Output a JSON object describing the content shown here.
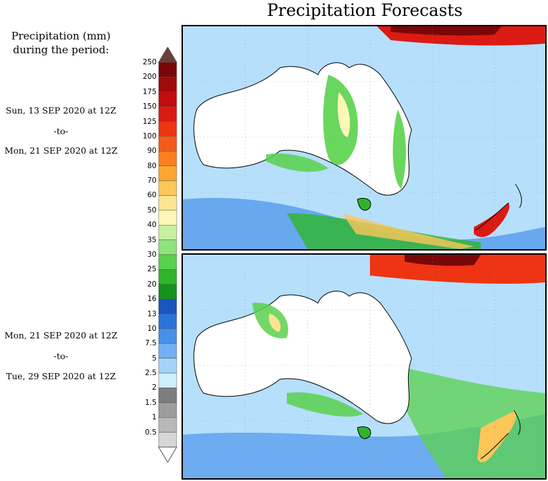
{
  "title": "Precipitation Forecasts",
  "legend": {
    "heading_line1": "Precipitation (mm)",
    "heading_line2": "during the period:",
    "labels": [
      "250",
      "200",
      "175",
      "150",
      "125",
      "100",
      "90",
      "80",
      "70",
      "60",
      "50",
      "40",
      "35",
      "30",
      "25",
      "20",
      "16",
      "13",
      "10",
      "7.5",
      "5",
      "2.5",
      "2",
      "1.5",
      "1",
      "0.5"
    ],
    "colors": [
      "#7a0707",
      "#a10a0a",
      "#c40c0c",
      "#dc1a14",
      "#ee3412",
      "#f55b18",
      "#fa801e",
      "#fca631",
      "#fdc659",
      "#fde590",
      "#fef7b8",
      "#c9f0a0",
      "#8fe47c",
      "#59d14c",
      "#2fb52c",
      "#13931c",
      "#1a55be",
      "#2a73d9",
      "#4690ea",
      "#72b0f4",
      "#a4d3fa",
      "#cdeefc",
      "#7d7d7d",
      "#9c9c9c",
      "#b9b9b9",
      "#d6d6d6"
    ],
    "over_color": "#6a4036",
    "under_color": "#ffffff"
  },
  "periods": [
    {
      "start": "Sun, 13 SEP 2020 at 12Z",
      "to": "-to-",
      "end": "Mon, 21 SEP 2020 at 12Z"
    },
    {
      "start": "Mon, 21 SEP 2020 at 12Z",
      "to": "-to-",
      "end": "Tue, 29 SEP 2020 at 12Z"
    }
  ],
  "map": {
    "land_dry_color": "#ffffff",
    "background_color": "#cdeefc",
    "coast_color": "#000000"
  }
}
